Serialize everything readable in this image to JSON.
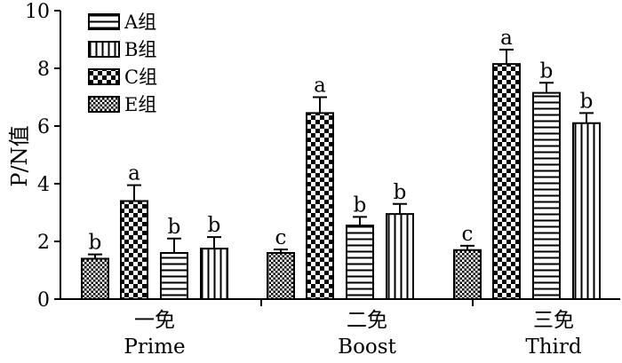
{
  "chart_data": {
    "type": "bar",
    "ylabel": "P/N值",
    "ylim": [
      0,
      10
    ],
    "yticks": [
      0,
      2,
      4,
      6,
      8,
      10
    ],
    "grid": false,
    "legend_position": "top-left",
    "categories": [
      {
        "line1": "一免",
        "line2": "Prime"
      },
      {
        "line1": "二免",
        "line2": "Boost"
      },
      {
        "line1": "三免",
        "line2": "Third"
      }
    ],
    "series": [
      {
        "name": "A组",
        "pattern": "hlines"
      },
      {
        "name": "B组",
        "pattern": "vlines"
      },
      {
        "name": "C组",
        "pattern": "checker"
      },
      {
        "name": "E组",
        "pattern": "fine-checker"
      }
    ],
    "bars": [
      {
        "category": 0,
        "series": "E组",
        "value": 1.4,
        "error": 0.15,
        "label": "b"
      },
      {
        "category": 0,
        "series": "C组",
        "value": 3.4,
        "error": 0.55,
        "label": "a"
      },
      {
        "category": 0,
        "series": "A组",
        "value": 1.6,
        "error": 0.5,
        "label": "b"
      },
      {
        "category": 0,
        "series": "B组",
        "value": 1.75,
        "error": 0.4,
        "label": "b"
      },
      {
        "category": 1,
        "series": "E组",
        "value": 1.6,
        "error": 0.12,
        "label": "c"
      },
      {
        "category": 1,
        "series": "C组",
        "value": 6.45,
        "error": 0.55,
        "label": "a"
      },
      {
        "category": 1,
        "series": "A组",
        "value": 2.55,
        "error": 0.3,
        "label": "b"
      },
      {
        "category": 1,
        "series": "B组",
        "value": 2.95,
        "error": 0.35,
        "label": "b"
      },
      {
        "category": 2,
        "series": "E组",
        "value": 1.7,
        "error": 0.15,
        "label": "c"
      },
      {
        "category": 2,
        "series": "C组",
        "value": 8.15,
        "error": 0.5,
        "label": "a"
      },
      {
        "category": 2,
        "series": "A组",
        "value": 7.15,
        "error": 0.35,
        "label": "b"
      },
      {
        "category": 2,
        "series": "B组",
        "value": 6.1,
        "error": 0.35,
        "label": "b"
      }
    ]
  }
}
